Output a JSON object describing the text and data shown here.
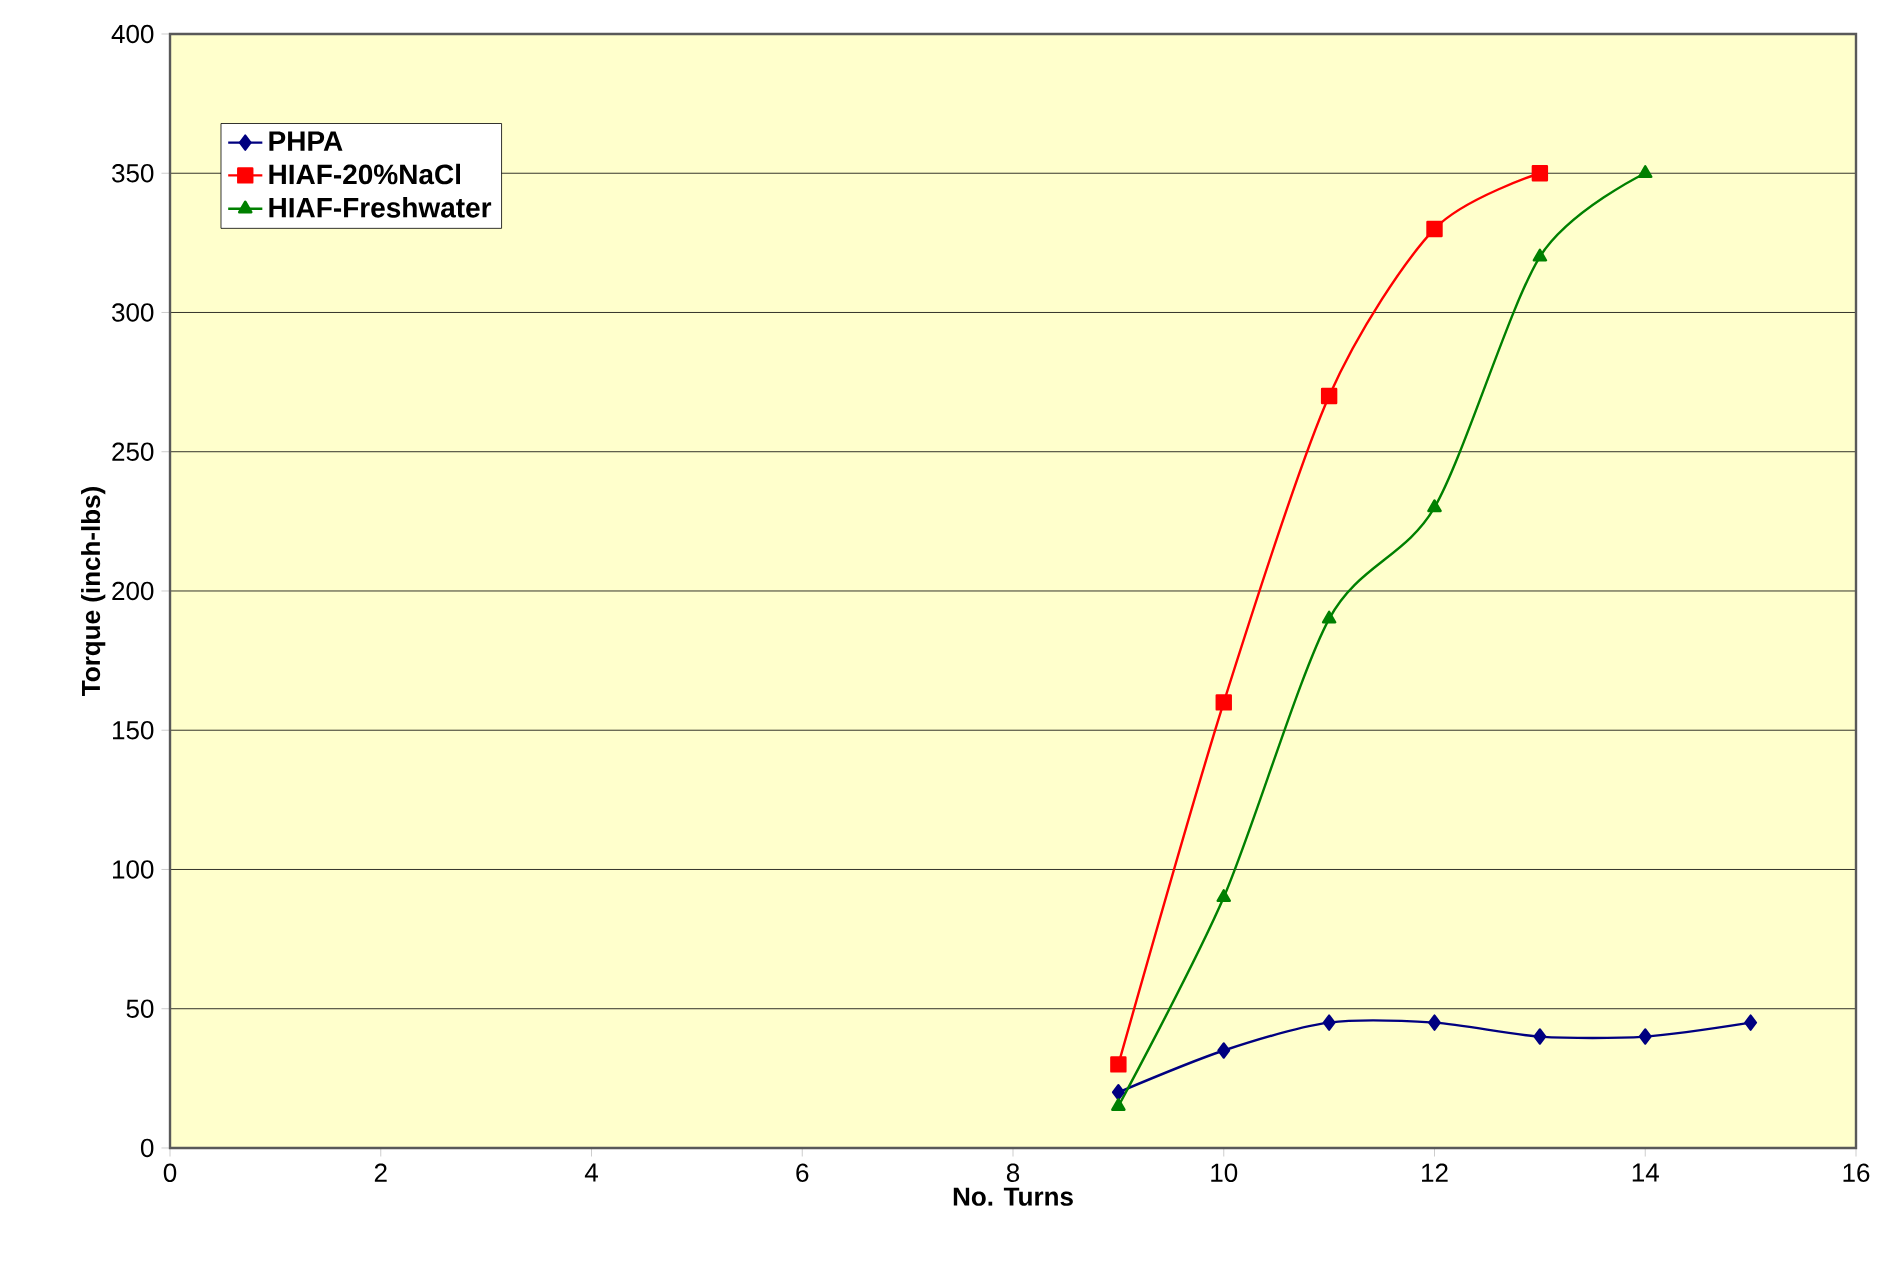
{
  "chart_data": {
    "type": "line",
    "xlabel": "No. Turns",
    "ylabel": "Torque (inch-lbs)",
    "xlim": [
      0,
      16
    ],
    "xticks": [
      0,
      2,
      4,
      6,
      8,
      10,
      12,
      14,
      16
    ],
    "ylim": [
      0,
      400
    ],
    "yticks": [
      0,
      50,
      100,
      150,
      200,
      250,
      300,
      350,
      400
    ],
    "grid": "y",
    "legend": "top left",
    "series": [
      {
        "name": "PHPA",
        "color": "#000080",
        "marker": "diamond",
        "x": [
          9,
          10,
          11,
          12,
          13,
          14,
          15
        ],
        "values": [
          20,
          35,
          45,
          45,
          40,
          40,
          45
        ]
      },
      {
        "name": "HIAF-20%NaCl",
        "color": "#ff0000",
        "marker": "square",
        "x": [
          9,
          10,
          11,
          12,
          13
        ],
        "values": [
          30,
          160,
          270,
          330,
          350
        ]
      },
      {
        "name": "HIAF-Freshwater",
        "color": "#008000",
        "marker": "triangle",
        "x": [
          9,
          10,
          11,
          12,
          13,
          14
        ],
        "values": [
          15,
          90,
          190,
          230,
          320,
          350
        ]
      }
    ]
  }
}
